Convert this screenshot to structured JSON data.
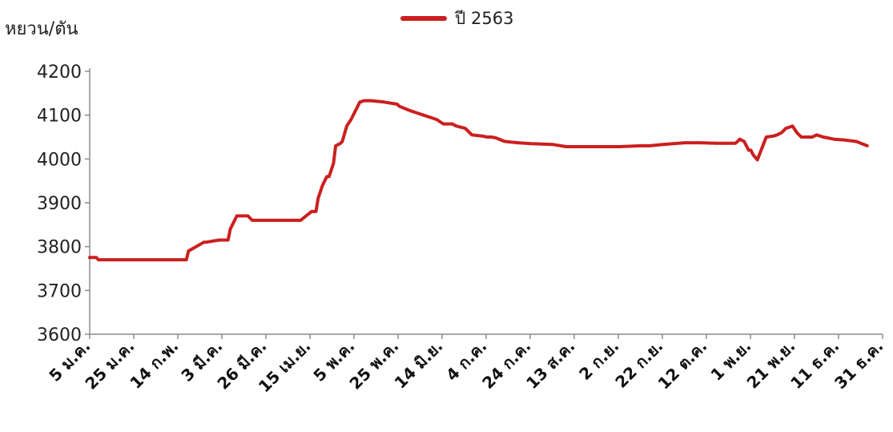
{
  "chart_data": {
    "type": "line",
    "title": "",
    "xlabel": "",
    "ylabel": "หยวน/ตัน",
    "ylim": [
      3600,
      4200
    ],
    "yticks": [
      3600,
      3700,
      3800,
      3900,
      4000,
      4100,
      4200
    ],
    "grid": false,
    "legend": "top-center",
    "x_tick_labels": [
      "5 ม.ค.",
      "25 ม.ค.",
      "14 ก.พ.",
      "3 มี.ค.",
      "26 มี.ค.",
      "15 เม.ย.",
      "5 พ.ค.",
      "25 พ.ค.",
      "14 มิ.ย.",
      "4 ก.ค.",
      "24 ก.ค.",
      "13 ส.ค.",
      "2 ก.ย.",
      "22 ก.ย.",
      "12 ต.ค.",
      "1 พ.ย.",
      "21 พ.ย.",
      "11 ธ.ค.",
      "31 ธ.ค."
    ],
    "series": [
      {
        "name": "ปี 2563",
        "color": "#cc1f1f",
        "x": [
          "2020-01-05",
          "2020-01-08",
          "2020-01-09",
          "2020-01-15",
          "2020-01-25",
          "2020-02-05",
          "2020-02-15",
          "2020-02-18",
          "2020-02-19",
          "2020-02-26",
          "2020-02-27",
          "2020-03-04",
          "2020-03-05",
          "2020-03-08",
          "2020-03-09",
          "2020-03-12",
          "2020-03-15",
          "2020-03-17",
          "2020-03-19",
          "2020-03-26",
          "2020-03-31",
          "2020-04-05",
          "2020-04-10",
          "2020-04-15",
          "2020-04-17",
          "2020-04-18",
          "2020-04-20",
          "2020-04-21",
          "2020-04-22",
          "2020-04-23",
          "2020-04-25",
          "2020-04-26",
          "2020-04-28",
          "2020-04-29",
          "2020-05-01",
          "2020-05-03",
          "2020-05-05",
          "2020-05-07",
          "2020-05-09",
          "2020-05-12",
          "2020-05-18",
          "2020-05-24",
          "2020-05-25",
          "2020-05-30",
          "2020-06-02",
          "2020-06-05",
          "2020-06-08",
          "2020-06-11",
          "2020-06-14",
          "2020-06-18",
          "2020-06-20",
          "2020-06-24",
          "2020-06-27",
          "2020-07-02",
          "2020-07-04",
          "2020-07-06",
          "2020-07-08",
          "2020-07-12",
          "2020-07-18",
          "2020-07-24",
          "2020-08-03",
          "2020-08-09",
          "2020-08-13",
          "2020-08-23",
          "2020-09-02",
          "2020-09-12",
          "2020-09-16",
          "2020-09-22",
          "2020-10-02",
          "2020-10-04",
          "2020-10-09",
          "2020-10-16",
          "2020-10-22",
          "2020-10-25",
          "2020-10-26",
          "2020-10-27",
          "2020-10-29",
          "2020-10-31",
          "2020-11-01",
          "2020-11-02",
          "2020-11-04",
          "2020-11-08",
          "2020-11-11",
          "2020-11-13",
          "2020-11-15",
          "2020-11-17",
          "2020-11-20",
          "2020-11-22",
          "2020-11-24",
          "2020-11-29",
          "2020-12-01",
          "2020-12-04",
          "2020-12-09",
          "2020-12-14",
          "2020-12-19",
          "2020-12-24"
        ],
        "values": [
          3775,
          3775,
          3770,
          3770,
          3770,
          3770,
          3770,
          3770,
          3790,
          3810,
          3810,
          3815,
          3815,
          3815,
          3840,
          3870,
          3870,
          3870,
          3860,
          3860,
          3860,
          3860,
          3860,
          3880,
          3880,
          3910,
          3940,
          3950,
          3960,
          3960,
          3990,
          4030,
          4035,
          4040,
          4075,
          4090,
          4110,
          4130,
          4133,
          4133,
          4130,
          4125,
          4120,
          4110,
          4105,
          4100,
          4095,
          4090,
          4080,
          4080,
          4075,
          4070,
          4055,
          4052,
          4050,
          4050,
          4048,
          4040,
          4037,
          4035,
          4033,
          4028,
          4028,
          4028,
          4028,
          4030,
          4030,
          4033,
          4037,
          4037,
          4037,
          4036,
          4036,
          4036,
          4040,
          4045,
          4040,
          4020,
          4020,
          4010,
          3998,
          4050,
          4052,
          4055,
          4060,
          4070,
          4075,
          4060,
          4050,
          4050,
          4055,
          4050,
          4045,
          4043,
          4040,
          4030
        ]
      }
    ]
  }
}
